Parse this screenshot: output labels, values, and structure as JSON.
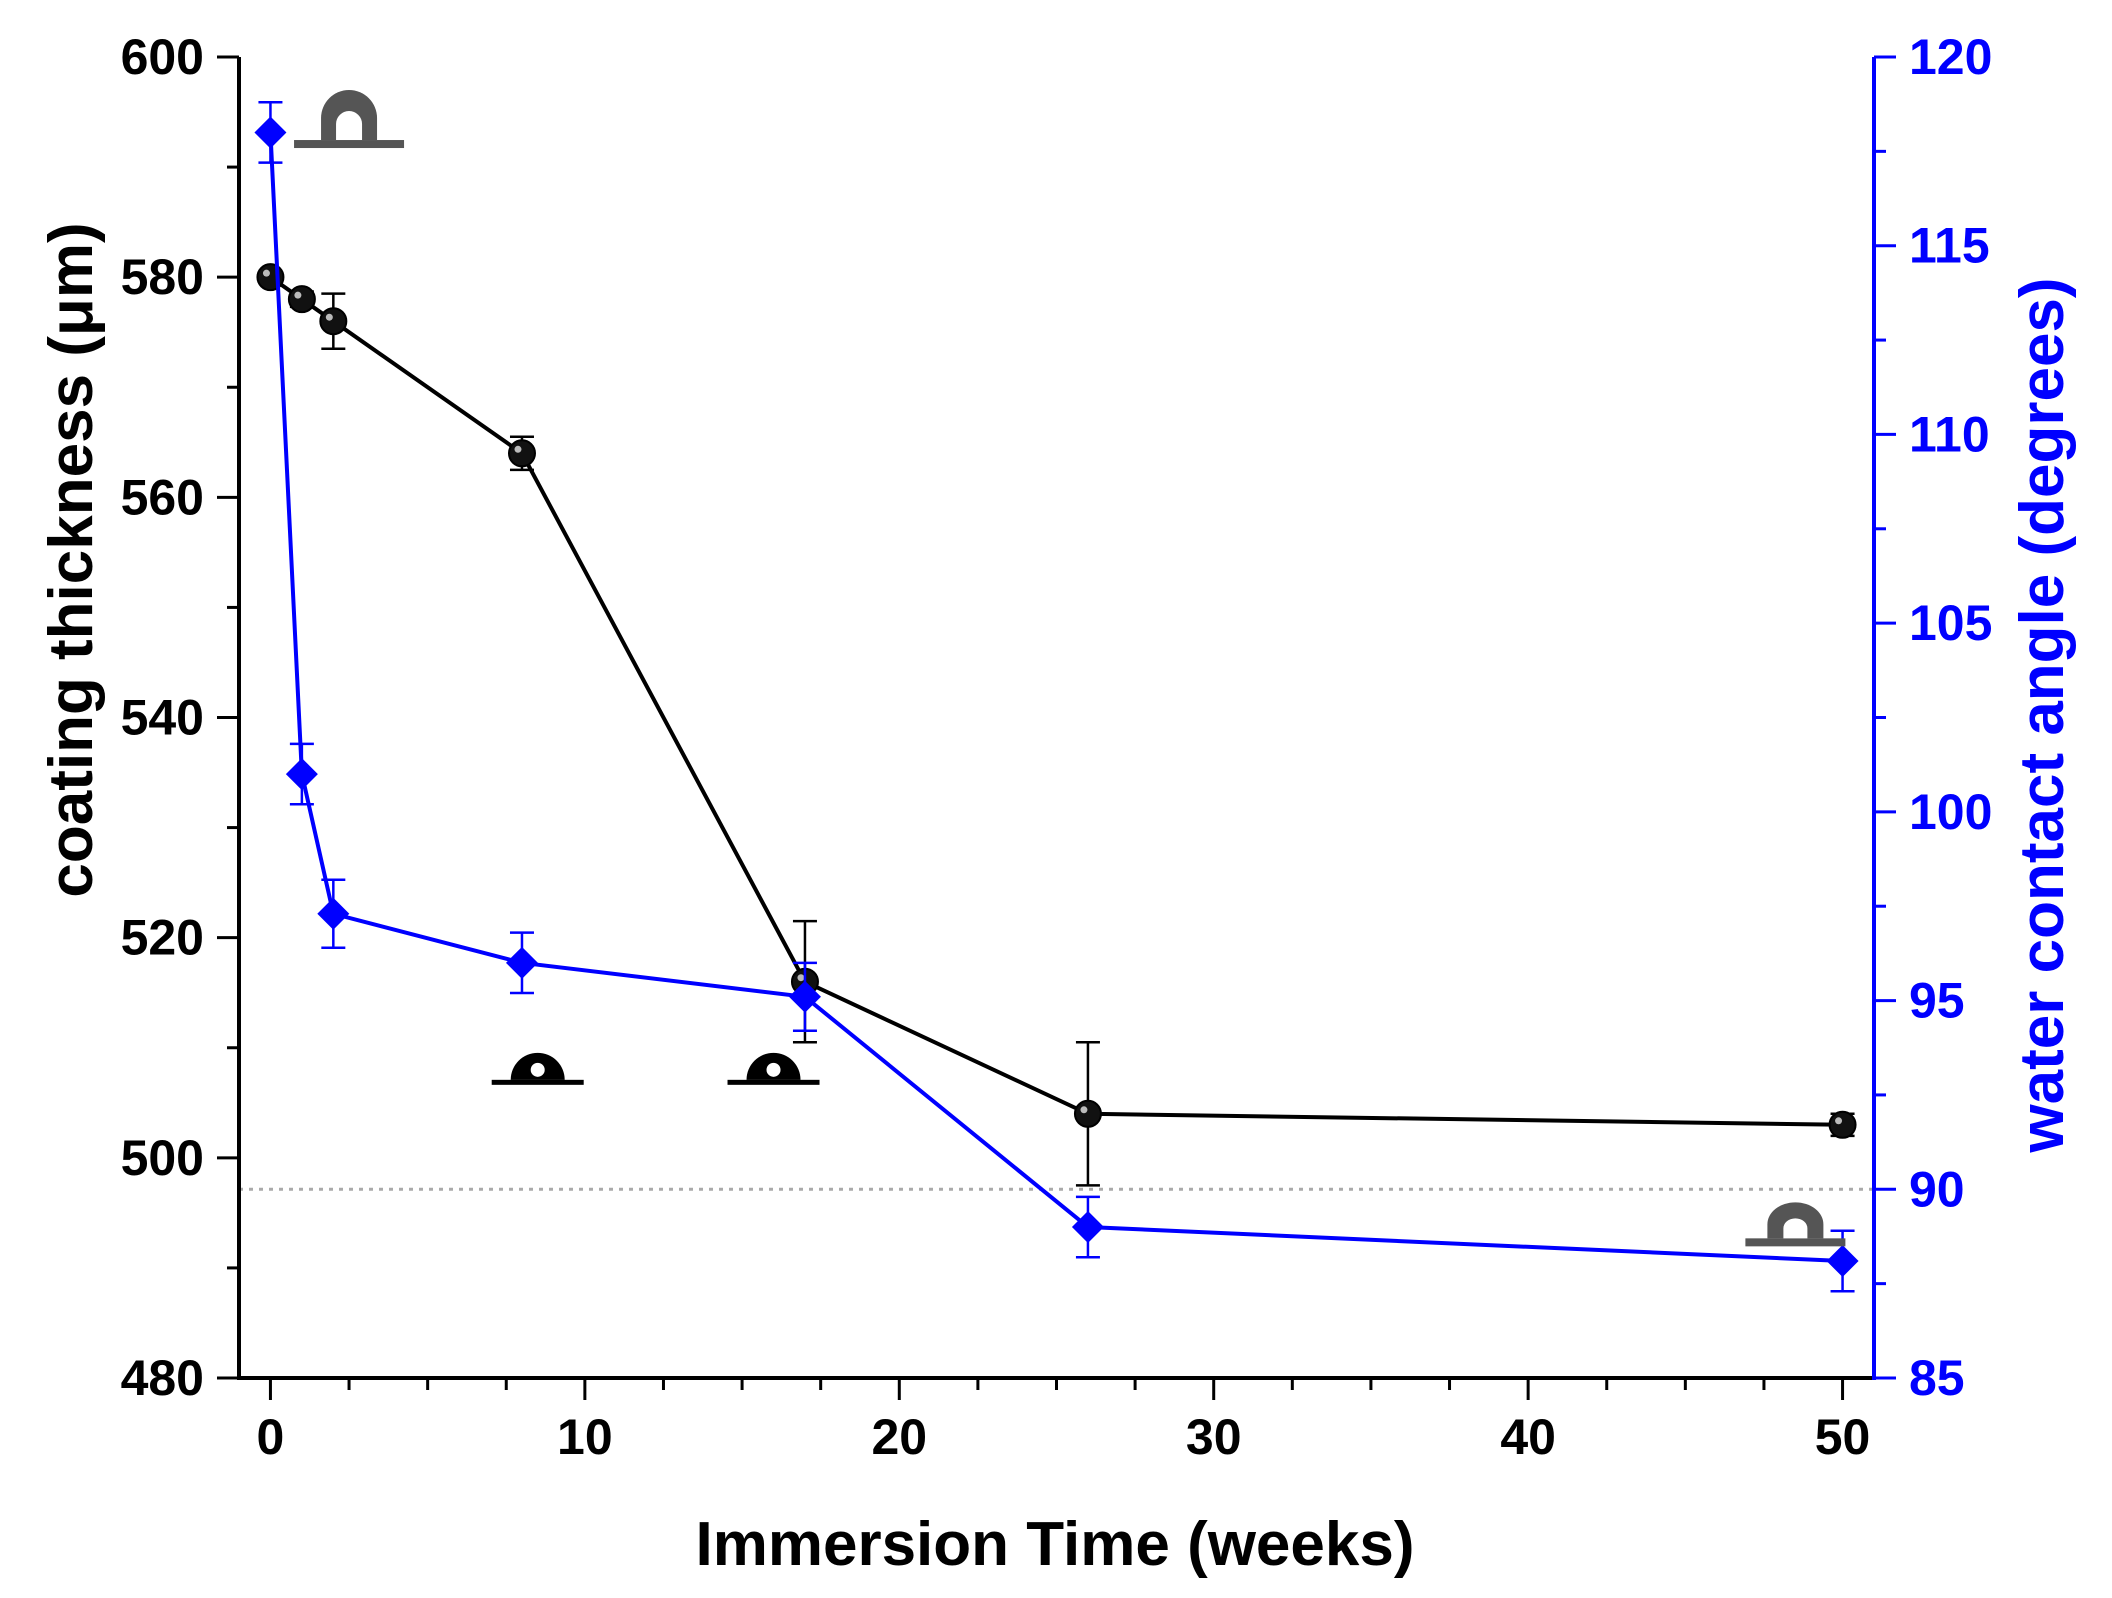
{
  "chart_data": {
    "type": "line",
    "title": "",
    "xlabel": "Immersion Time (weeks)",
    "ylabel_left": "coating thickness (μm)",
    "ylabel_right": "water contact angle (degrees)",
    "xlim": [
      -1,
      51
    ],
    "ylim_left": [
      480,
      600
    ],
    "ylim_right": [
      85,
      120
    ],
    "x_ticks": [
      0,
      10,
      20,
      30,
      40,
      50
    ],
    "y_left_ticks": [
      480,
      500,
      520,
      540,
      560,
      580,
      600
    ],
    "y_right_ticks": [
      85,
      90,
      95,
      100,
      105,
      110,
      115,
      120
    ],
    "grid": false,
    "reference_line": {
      "axis": "right",
      "value": 90,
      "style": "dotted",
      "color": "#aaaaaa"
    },
    "series": [
      {
        "axis": "left",
        "marker": "circle",
        "color": "#000000",
        "x": [
          0,
          1,
          2,
          8,
          17,
          26,
          50
        ],
        "y": [
          580,
          578,
          576,
          564,
          516,
          504,
          503
        ],
        "err": [
          0.5,
          0.7,
          2.5,
          1.5,
          5.5,
          6.5,
          1.0
        ]
      },
      {
        "axis": "right",
        "marker": "diamond",
        "color": "#0000ff",
        "x": [
          0,
          1,
          2,
          8,
          17,
          26,
          50
        ],
        "y": [
          118,
          101,
          97.3,
          96,
          95.1,
          89,
          88.1
        ],
        "err": [
          0.8,
          0.8,
          0.9,
          0.8,
          0.9,
          0.8,
          0.8
        ]
      }
    ],
    "droplet_icons": [
      {
        "x": 2.5,
        "y_right": 117.8,
        "shape": "hydrophobic-droplet",
        "color": "#555555"
      },
      {
        "x": 8.5,
        "y_right": 92.9,
        "shape": "hemispherical-droplet",
        "color": "#000000"
      },
      {
        "x": 16,
        "y_right": 92.9,
        "shape": "hemispherical-droplet",
        "color": "#000000"
      },
      {
        "x": 48.5,
        "y_right": 88.7,
        "shape": "flattened-droplet",
        "color": "#555555"
      }
    ]
  }
}
